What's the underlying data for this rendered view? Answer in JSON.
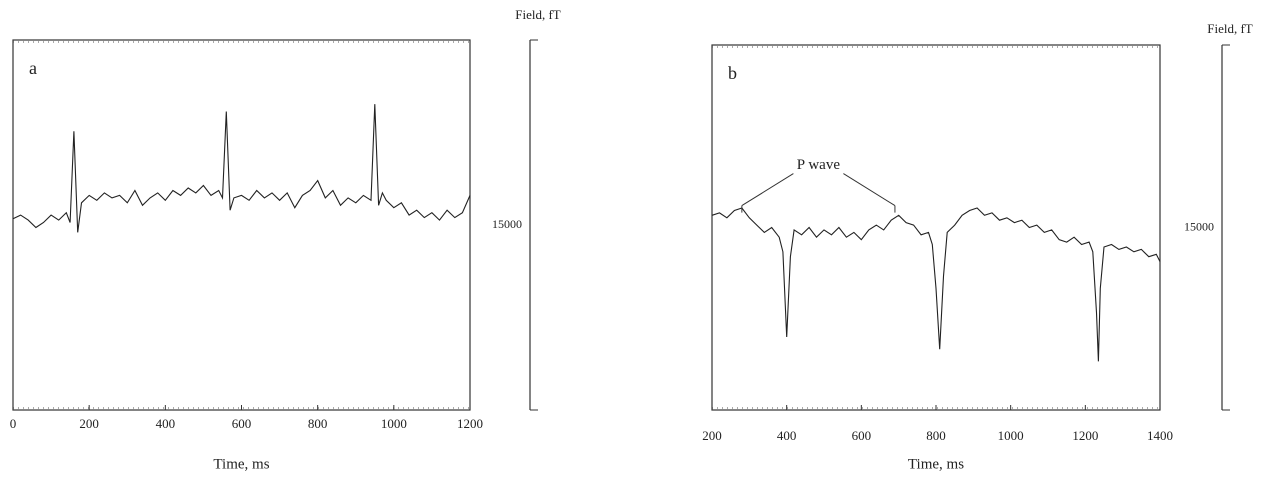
{
  "chart_data": [
    {
      "type": "line",
      "label": "a",
      "x_label": "Time, ms",
      "y_label": "Field, fT",
      "scale_bar": 15000,
      "color": "#222",
      "xlim": [
        0,
        1200
      ],
      "xticks": [
        0,
        200,
        400,
        600,
        800,
        1000,
        1200
      ],
      "ylim": [
        0,
        15000
      ],
      "x": [
        0,
        20,
        40,
        60,
        80,
        100,
        120,
        140,
        150,
        160,
        170,
        180,
        200,
        220,
        240,
        260,
        280,
        300,
        320,
        340,
        360,
        380,
        400,
        420,
        440,
        460,
        480,
        500,
        520,
        540,
        550,
        560,
        570,
        580,
        600,
        620,
        640,
        660,
        680,
        700,
        720,
        740,
        760,
        780,
        800,
        820,
        840,
        860,
        880,
        900,
        920,
        940,
        950,
        960,
        970,
        980,
        1000,
        1020,
        1040,
        1060,
        1080,
        1100,
        1120,
        1140,
        1160,
        1180,
        1200
      ],
      "values": [
        7750,
        7900,
        7700,
        7400,
        7600,
        7900,
        7700,
        8000,
        7600,
        11300,
        7200,
        8400,
        8700,
        8500,
        8800,
        8600,
        8700,
        8400,
        8900,
        8300,
        8600,
        8800,
        8500,
        8900,
        8700,
        9000,
        8800,
        9100,
        8700,
        8900,
        8600,
        12100,
        8100,
        8600,
        8700,
        8500,
        8900,
        8600,
        8800,
        8500,
        8800,
        8200,
        8700,
        8900,
        9300,
        8600,
        8900,
        8300,
        8600,
        8400,
        8700,
        8500,
        12400,
        8300,
        8800,
        8500,
        8200,
        8400,
        7900,
        8100,
        7800,
        8000,
        7700,
        8100,
        7800,
        8000,
        8700
      ]
    },
    {
      "type": "line",
      "label": "b",
      "x_label": "Time, ms",
      "y_label": "Field, fT",
      "scale_bar": 15000,
      "color": "#222",
      "annotation": {
        "text": "P wave",
        "x": [
          280,
          690
        ],
        "y": 8400
      },
      "xlim": [
        200,
        1400
      ],
      "xticks": [
        200,
        400,
        600,
        800,
        1000,
        1200,
        1400
      ],
      "ylim": [
        0,
        15000
      ],
      "x": [
        200,
        220,
        240,
        260,
        280,
        300,
        320,
        340,
        360,
        380,
        390,
        400,
        410,
        420,
        440,
        460,
        480,
        500,
        520,
        540,
        560,
        580,
        600,
        620,
        640,
        660,
        680,
        700,
        720,
        740,
        760,
        780,
        790,
        800,
        810,
        820,
        830,
        850,
        870,
        890,
        910,
        930,
        950,
        970,
        990,
        1010,
        1030,
        1050,
        1070,
        1090,
        1110,
        1130,
        1150,
        1170,
        1190,
        1210,
        1220,
        1230,
        1235,
        1240,
        1250,
        1270,
        1290,
        1310,
        1330,
        1350,
        1370,
        1390,
        1400
      ],
      "values": [
        8000,
        8100,
        7900,
        8200,
        8300,
        7900,
        7600,
        7300,
        7500,
        7100,
        6500,
        3000,
        6300,
        7400,
        7200,
        7500,
        7100,
        7400,
        7200,
        7500,
        7100,
        7300,
        7000,
        7400,
        7600,
        7400,
        7800,
        8000,
        7700,
        7600,
        7200,
        7300,
        6800,
        5000,
        2500,
        5500,
        7300,
        7600,
        8000,
        8200,
        8300,
        8000,
        8100,
        7800,
        7900,
        7700,
        7800,
        7500,
        7600,
        7300,
        7400,
        7000,
        6900,
        7100,
        6800,
        6900,
        6500,
        4000,
        2000,
        5000,
        6700,
        6800,
        6600,
        6700,
        6500,
        6600,
        6300,
        6400,
        6100
      ]
    }
  ]
}
